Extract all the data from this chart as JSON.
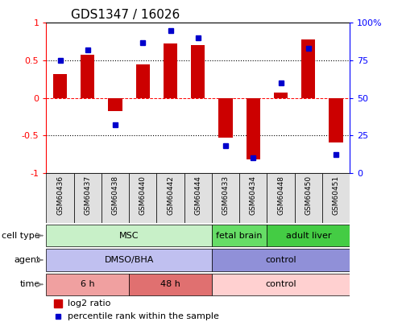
{
  "title": "GDS1347 / 16026",
  "samples": [
    "GSM60436",
    "GSM60437",
    "GSM60438",
    "GSM60440",
    "GSM60442",
    "GSM60444",
    "GSM60433",
    "GSM60434",
    "GSM60448",
    "GSM60450",
    "GSM60451"
  ],
  "log2_ratio": [
    0.32,
    0.57,
    -0.18,
    0.45,
    0.73,
    0.7,
    -0.53,
    -0.82,
    0.07,
    0.78,
    -0.6
  ],
  "percentile_rank": [
    75,
    82,
    32,
    87,
    95,
    90,
    18,
    10,
    60,
    83,
    12
  ],
  "cell_type_groups": [
    {
      "label": "MSC",
      "start": 0,
      "end": 6,
      "color": "#c8f0c8"
    },
    {
      "label": "fetal brain",
      "start": 6,
      "end": 8,
      "color": "#66dd66"
    },
    {
      "label": "adult liver",
      "start": 8,
      "end": 11,
      "color": "#44cc44"
    }
  ],
  "agent_groups": [
    {
      "label": "DMSO/BHA",
      "start": 0,
      "end": 6,
      "color": "#c0c0f0"
    },
    {
      "label": "control",
      "start": 6,
      "end": 11,
      "color": "#9090d8"
    }
  ],
  "time_groups": [
    {
      "label": "6 h",
      "start": 0,
      "end": 3,
      "color": "#f0a0a0"
    },
    {
      "label": "48 h",
      "start": 3,
      "end": 6,
      "color": "#e07070"
    },
    {
      "label": "control",
      "start": 6,
      "end": 11,
      "color": "#ffd0d0"
    }
  ],
  "bar_color": "#cc0000",
  "dot_color": "#0000cc",
  "background_color": "#ffffff",
  "legend": [
    "log2 ratio",
    "percentile rank within the sample"
  ]
}
